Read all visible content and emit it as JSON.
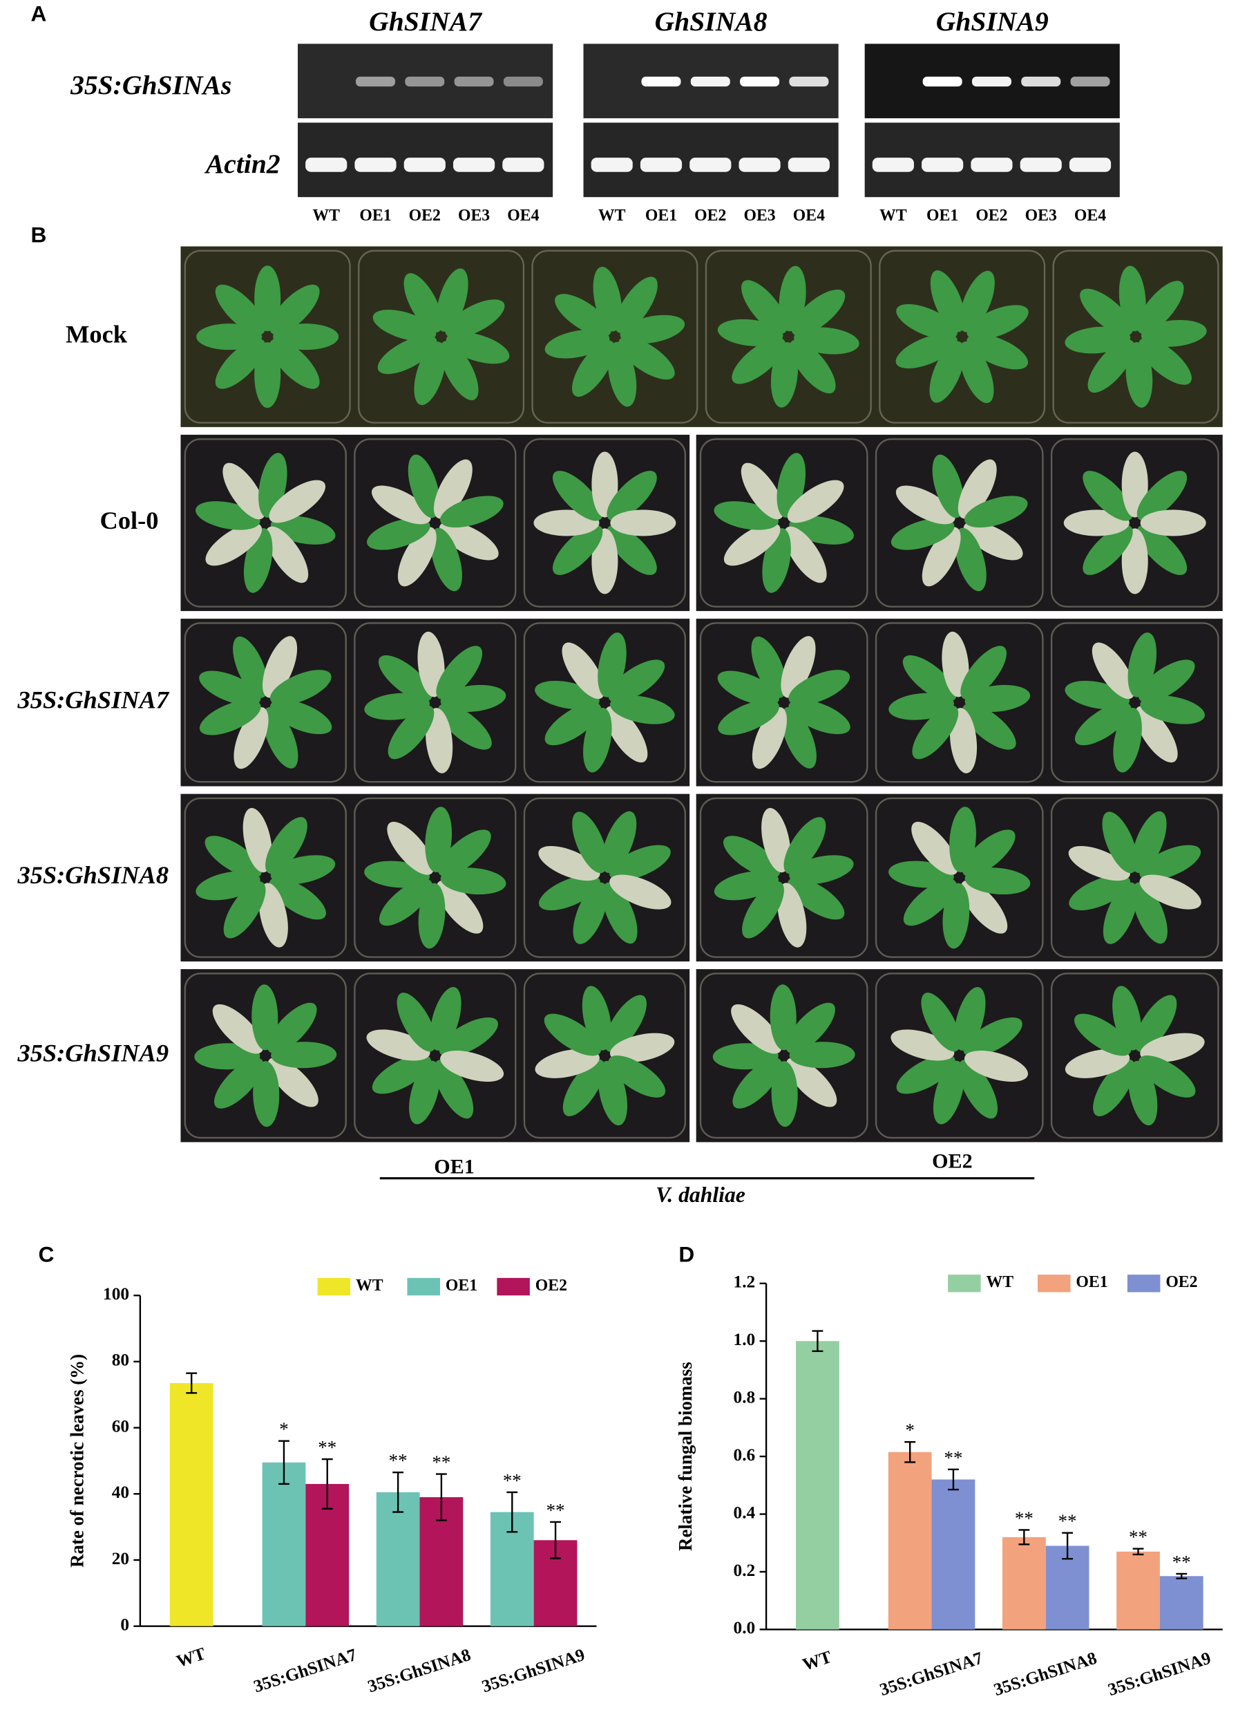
{
  "panel_labels": [
    "A",
    "B",
    "C",
    "D"
  ],
  "panel_a": {
    "genes": [
      "GhSINA7",
      "GhSINA8",
      "GhSINA9"
    ],
    "row_labels": [
      "35S:GhSINAs",
      "Actin2"
    ],
    "lanes": [
      "WT",
      "OE1",
      "OE2",
      "OE3",
      "OE4"
    ]
  },
  "panel_b": {
    "row_labels": [
      "Mock",
      "Col-0",
      "35S:GhSINA7",
      "35S:GhSINA8",
      "35S:GhSINA9"
    ],
    "groups": [
      "OE1",
      "OE2"
    ],
    "treatment": "V. dahliae"
  },
  "chart_data": [
    {
      "type": "bar",
      "y_label": "Rate of necrotic leaves (%)",
      "categories": [
        "WT",
        "35S:GhSINA7",
        "35S:GhSINA8",
        "35S:GhSINA9"
      ],
      "series": [
        {
          "name": "WT",
          "color": "#f0e628",
          "values": [
            73.5,
            null,
            null,
            null
          ],
          "errors": [
            3,
            null,
            null,
            null
          ],
          "significance": [
            null,
            null,
            null,
            null
          ]
        },
        {
          "name": "OE1",
          "color": "#6cc3b4",
          "values": [
            null,
            49.5,
            40.5,
            34.5
          ],
          "errors": [
            null,
            6.5,
            6,
            6
          ],
          "significance": [
            null,
            "*",
            "**",
            "**"
          ]
        },
        {
          "name": "OE2",
          "color": "#b2155a",
          "values": [
            null,
            43,
            39,
            26
          ],
          "errors": [
            null,
            7.5,
            7,
            5.5
          ],
          "significance": [
            null,
            "**",
            "**",
            "**"
          ]
        }
      ],
      "ylim": [
        0,
        100
      ],
      "yticks": [
        0,
        20,
        40,
        60,
        80,
        100
      ],
      "legend": "top-right"
    },
    {
      "type": "bar",
      "y_label": "Relative fungal biomass",
      "categories": [
        "WT",
        "35S:GhSINA7",
        "35S:GhSINA8",
        "35S:GhSINA9"
      ],
      "series": [
        {
          "name": "WT",
          "color": "#94cfa2",
          "values": [
            1.0,
            null,
            null,
            null
          ],
          "errors": [
            0.035,
            null,
            null,
            null
          ],
          "significance": [
            null,
            null,
            null,
            null
          ]
        },
        {
          "name": "OE1",
          "color": "#f2a27c",
          "values": [
            null,
            0.615,
            0.32,
            0.27
          ],
          "errors": [
            null,
            0.035,
            0.025,
            0.01
          ],
          "significance": [
            null,
            "*",
            "**",
            "**"
          ]
        },
        {
          "name": "OE2",
          "color": "#7e90d2",
          "values": [
            null,
            0.52,
            0.29,
            0.185
          ],
          "errors": [
            null,
            0.035,
            0.045,
            0.008
          ],
          "significance": [
            null,
            "**",
            "**",
            "**"
          ]
        }
      ],
      "ylim": [
        0,
        1.2
      ],
      "yticks": [
        {
          "value": 0,
          "label": "0.0"
        },
        0.2,
        0.4,
        0.6,
        0.8,
        {
          "value": 1,
          "label": "1.0"
        },
        1.2
      ],
      "legend": "top-right"
    }
  ]
}
